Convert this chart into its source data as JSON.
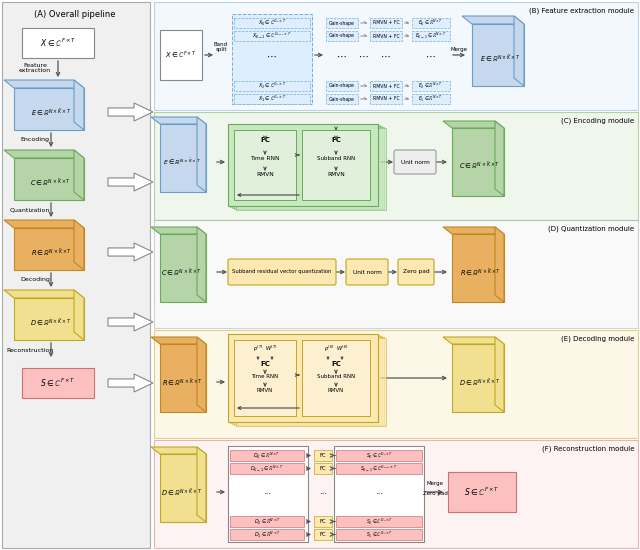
{
  "colors": {
    "blue_cube": "#c5d8ed",
    "blue_cube_edge": "#6a9ec5",
    "green_cube": "#b5d4a8",
    "green_cube_edge": "#6aaa5a",
    "orange_cube": "#e8b060",
    "orange_cube_edge": "#c08820",
    "yellow_cube": "#f0e090",
    "yellow_cube_edge": "#c0a820",
    "pink_box": "#fcc0c0",
    "pink_box_edge": "#d07070",
    "white_box": "#ffffff",
    "white_box_edge": "#888888",
    "blue_section": "#e8f2fa",
    "blue_section_edge": "#7aafd4",
    "green_section": "#e0f0da",
    "green_section_edge": "#6aaa5a",
    "quant_section": "#f5f5f5",
    "quant_section_edge": "#aaaaaa",
    "yellow_section": "#fdf0d0",
    "yellow_section_edge": "#c0a820",
    "pink_section": "#fde8e8",
    "pink_section_edge": "#d07070",
    "panel_a_bg": "#f0f0f0",
    "panel_a_edge": "#aaaaaa",
    "blue_dashed": "#ddeeff",
    "blue_dashed_edge": "#7aafd4",
    "green_inner": "#c8e8c0",
    "green_inner_edge": "#6aaa5a",
    "yellow_inner": "#fce8b0",
    "yellow_inner_edge": "#c0a820",
    "gray_box": "#eeeeee",
    "gray_box_edge": "#999999",
    "fat_arrow_fill": "#ffffff",
    "fat_arrow_edge": "#888888"
  },
  "section_labels": [
    "(A) Overall pipeline",
    "(B) Feature extraction module",
    "(C) Encoding module",
    "(D) Quantization module",
    "(E) Decoding module",
    "(F) Reconstruction module"
  ]
}
